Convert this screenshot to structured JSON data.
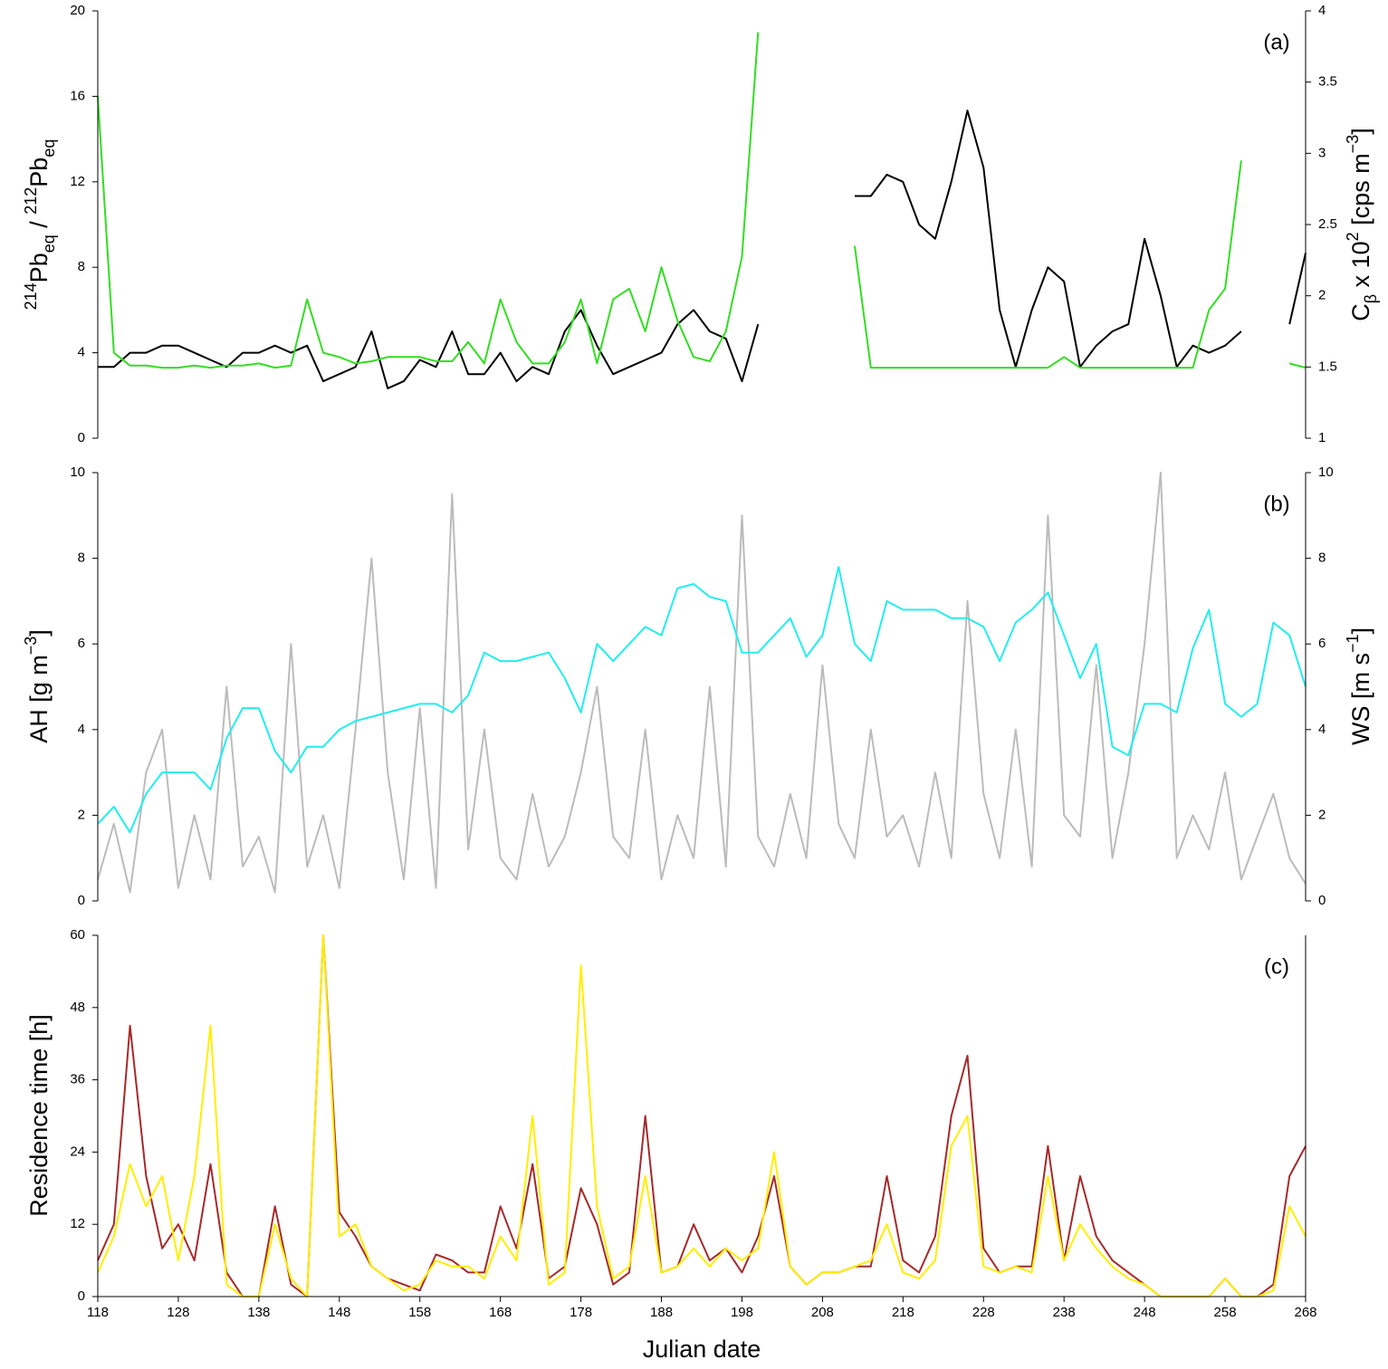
{
  "chart_data": [
    {
      "type": "line",
      "panel_label": "(a)",
      "ylabel": [
        "214",
        "Pb",
        "eq",
        " / ",
        "212",
        "Pb",
        "eq"
      ],
      "y2label": [
        "C",
        "β",
        " x 10",
        "2",
        " [cps m",
        "−3",
        "]"
      ],
      "xlim": [
        118,
        268
      ],
      "ylim": [
        0,
        20
      ],
      "yticks": [
        0,
        4,
        8,
        12,
        16,
        20
      ],
      "y2lim": [
        1,
        4
      ],
      "y2ticks": [
        1,
        1.5,
        2,
        2.5,
        3,
        3.5,
        4
      ],
      "x": [
        118,
        120,
        122,
        124,
        126,
        128,
        130,
        132,
        134,
        136,
        138,
        140,
        142,
        144,
        146,
        148,
        150,
        152,
        154,
        156,
        158,
        160,
        162,
        164,
        166,
        168,
        170,
        172,
        174,
        176,
        178,
        180,
        182,
        184,
        186,
        188,
        190,
        192,
        194,
        196,
        198,
        200,
        202,
        204,
        206,
        208,
        210,
        212,
        214,
        216,
        218,
        220,
        222,
        224,
        226,
        228,
        230,
        232,
        234,
        236,
        238,
        240,
        242,
        244,
        246,
        248,
        250,
        252,
        254,
        256,
        258,
        260,
        262,
        264,
        266,
        268
      ],
      "series": [
        {
          "color": "#000000",
          "axis": "y2",
          "values": [
            1.5,
            1.5,
            1.6,
            1.6,
            1.65,
            1.65,
            1.6,
            1.55,
            1.5,
            1.6,
            1.6,
            1.65,
            1.6,
            1.65,
            1.4,
            1.45,
            1.5,
            1.75,
            1.35,
            1.4,
            1.55,
            1.5,
            1.75,
            1.45,
            1.45,
            1.6,
            1.4,
            1.5,
            1.45,
            1.75,
            1.9,
            1.65,
            1.45,
            1.5,
            1.55,
            1.6,
            1.8,
            1.9,
            1.75,
            1.7,
            1.4,
            1.8,
            null,
            null,
            null,
            null,
            null,
            2.7,
            2.7,
            2.85,
            2.8,
            2.5,
            2.4,
            2.8,
            3.3,
            2.9,
            1.9,
            1.5,
            1.9,
            2.2,
            2.1,
            1.5,
            1.65,
            1.75,
            1.8,
            2.4,
            2.0,
            1.5,
            1.65,
            1.6,
            1.65,
            1.75,
            null,
            null,
            1.8,
            2.3
          ]
        },
        {
          "color": "#33dd22",
          "values": [
            16,
            4,
            3.4,
            3.4,
            3.3,
            3.3,
            3.4,
            3.3,
            3.4,
            3.4,
            3.5,
            3.3,
            3.4,
            6.5,
            4,
            3.8,
            3.5,
            3.6,
            3.8,
            3.8,
            3.8,
            3.6,
            3.6,
            4.5,
            3.5,
            6.5,
            4.5,
            3.5,
            3.5,
            4.5,
            6.5,
            3.5,
            6.5,
            7,
            5,
            8,
            5.5,
            3.8,
            3.6,
            5,
            8.5,
            19,
            null,
            null,
            null,
            null,
            null,
            9,
            3.3,
            3.3,
            3.3,
            3.3,
            3.3,
            3.3,
            3.3,
            3.3,
            3.3,
            3.3,
            3.3,
            3.3,
            3.8,
            3.3,
            3.3,
            3.3,
            3.3,
            3.3,
            3.3,
            3.3,
            3.3,
            6,
            7,
            13,
            null,
            null,
            3.5,
            3.3
          ]
        }
      ]
    },
    {
      "type": "line",
      "panel_label": "(b)",
      "ylabel": [
        "AH [g m",
        "−3",
        "]"
      ],
      "y2label": [
        "WS [m s",
        "−1",
        "]"
      ],
      "xlim": [
        118,
        268
      ],
      "ylim": [
        0,
        10
      ],
      "yticks": [
        0,
        2,
        4,
        6,
        8,
        10
      ],
      "y2lim": [
        0,
        10
      ],
      "y2ticks": [
        0,
        2,
        4,
        6,
        8,
        10
      ],
      "x": [
        118,
        120,
        122,
        124,
        126,
        128,
        130,
        132,
        134,
        136,
        138,
        140,
        142,
        144,
        146,
        148,
        150,
        152,
        154,
        156,
        158,
        160,
        162,
        164,
        166,
        168,
        170,
        172,
        174,
        176,
        178,
        180,
        182,
        184,
        186,
        188,
        190,
        192,
        194,
        196,
        198,
        200,
        202,
        204,
        206,
        208,
        210,
        212,
        214,
        216,
        218,
        220,
        222,
        224,
        226,
        228,
        230,
        232,
        234,
        236,
        238,
        240,
        242,
        244,
        246,
        248,
        250,
        252,
        254,
        256,
        258,
        260,
        262,
        264,
        266,
        268
      ],
      "series": [
        {
          "color": "#bbbbbb",
          "axis": "y2",
          "values": [
            0.5,
            1.8,
            0.2,
            3,
            4,
            0.3,
            2,
            0.5,
            5,
            0.8,
            1.5,
            0.2,
            6,
            0.8,
            2,
            0.3,
            4,
            8,
            3,
            0.5,
            4.5,
            0.3,
            9.5,
            1.2,
            4,
            1,
            0.5,
            2.5,
            0.8,
            1.5,
            3,
            5,
            1.5,
            1,
            4,
            0.5,
            2,
            1,
            5,
            0.8,
            9,
            1.5,
            0.8,
            2.5,
            1,
            5.5,
            1.8,
            1,
            4,
            1.5,
            2,
            0.8,
            3,
            1,
            7,
            2.5,
            1,
            4,
            0.8,
            9,
            2,
            1.5,
            5.5,
            1,
            3,
            6,
            10,
            1,
            2,
            1.2,
            3,
            0.5,
            1.5,
            2.5,
            1,
            0.4
          ]
        },
        {
          "color": "#22eeee",
          "values": [
            1.8,
            2.2,
            1.6,
            2.5,
            3,
            3,
            3,
            2.6,
            3.8,
            4.5,
            4.5,
            3.5,
            3,
            3.6,
            3.6,
            4,
            4.2,
            4.3,
            4.4,
            4.5,
            4.6,
            4.6,
            4.4,
            4.8,
            5.8,
            5.6,
            5.6,
            5.7,
            5.8,
            5.2,
            4.4,
            6,
            5.6,
            6,
            6.4,
            6.2,
            7.3,
            7.4,
            7.1,
            7,
            5.8,
            5.8,
            6.2,
            6.6,
            5.7,
            6.2,
            7.8,
            6,
            5.6,
            7,
            6.8,
            6.8,
            6.8,
            6.6,
            6.6,
            6.4,
            5.6,
            6.5,
            6.8,
            7.2,
            6.2,
            5.2,
            6,
            3.6,
            3.4,
            4.6,
            4.6,
            4.4,
            5.9,
            6.8,
            4.6,
            4.3,
            4.6,
            6.5,
            6.2,
            5
          ]
        }
      ]
    },
    {
      "type": "line",
      "panel_label": "(c)",
      "ylabel": "Residence time [h]",
      "xlabel": "Julian date",
      "xlim": [
        118,
        268
      ],
      "xticks": [
        118,
        128,
        138,
        148,
        158,
        168,
        178,
        188,
        198,
        208,
        218,
        228,
        238,
        248,
        258,
        268
      ],
      "ylim": [
        0,
        60
      ],
      "yticks": [
        0,
        12,
        24,
        36,
        48,
        60
      ],
      "x": [
        118,
        120,
        122,
        124,
        126,
        128,
        130,
        132,
        134,
        136,
        138,
        140,
        142,
        144,
        146,
        148,
        150,
        152,
        154,
        156,
        158,
        160,
        162,
        164,
        166,
        168,
        170,
        172,
        174,
        176,
        178,
        180,
        182,
        184,
        186,
        188,
        190,
        192,
        194,
        196,
        198,
        200,
        202,
        204,
        206,
        208,
        210,
        212,
        214,
        216,
        218,
        220,
        222,
        224,
        226,
        228,
        230,
        232,
        234,
        236,
        238,
        240,
        242,
        244,
        246,
        248,
        250,
        252,
        254,
        256,
        258,
        260,
        262,
        264,
        266,
        268
      ],
      "series": [
        {
          "color": "#a52a2a",
          "values": [
            6,
            12,
            45,
            20,
            8,
            12,
            6,
            22,
            4,
            0,
            0,
            15,
            2,
            0,
            60,
            14,
            10,
            5,
            3,
            2,
            1,
            7,
            6,
            4,
            4,
            15,
            8,
            22,
            3,
            5,
            18,
            12,
            2,
            4,
            30,
            4,
            5,
            12,
            6,
            8,
            4,
            10,
            20,
            5,
            2,
            4,
            4,
            5,
            5,
            20,
            6,
            4,
            10,
            30,
            40,
            8,
            4,
            5,
            5,
            25,
            6,
            20,
            10,
            6,
            4,
            2,
            0,
            0,
            0,
            0,
            3,
            0,
            0,
            2,
            20,
            25
          ]
        },
        {
          "color": "#ffee00",
          "values": [
            4,
            10,
            22,
            15,
            20,
            6,
            20,
            45,
            2,
            0,
            0,
            12,
            3,
            0,
            60,
            10,
            12,
            5,
            3,
            1,
            2,
            6,
            5,
            5,
            3,
            10,
            6,
            30,
            2,
            4,
            55,
            15,
            3,
            5,
            20,
            4,
            5,
            8,
            5,
            8,
            6,
            8,
            24,
            5,
            2,
            4,
            4,
            5,
            6,
            12,
            4,
            3,
            6,
            25,
            30,
            5,
            4,
            5,
            4,
            20,
            6,
            12,
            8,
            5,
            3,
            2,
            0,
            0,
            0,
            0,
            3,
            0,
            0,
            1,
            15,
            10
          ]
        }
      ]
    }
  ]
}
